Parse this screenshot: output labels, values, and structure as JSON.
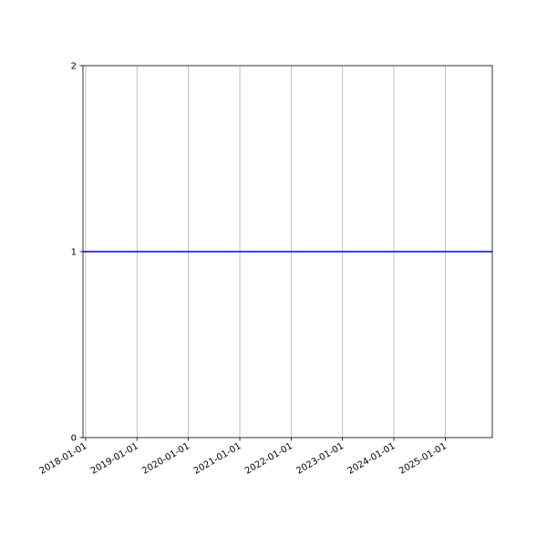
{
  "chart_data": {
    "type": "line",
    "title": "",
    "xlabel": "",
    "ylabel": "",
    "x_axis_type": "date",
    "xlim": [
      "2017-12-13",
      "2025-12-01"
    ],
    "ylim": [
      0,
      2
    ],
    "x_ticks": [
      "2018-01-01",
      "2019-01-01",
      "2020-01-01",
      "2021-01-01",
      "2022-01-01",
      "2023-01-01",
      "2024-01-01",
      "2025-01-01"
    ],
    "y_ticks": [
      0,
      1,
      2
    ],
    "grid": {
      "x": true,
      "y": false,
      "color": "#b0b0b0"
    },
    "tick_label_rotation": 30,
    "series": [
      {
        "x": [
          "2017-12-13",
          "2025-12-01"
        ],
        "y": [
          1,
          1
        ],
        "color": "#0000ff"
      }
    ]
  }
}
